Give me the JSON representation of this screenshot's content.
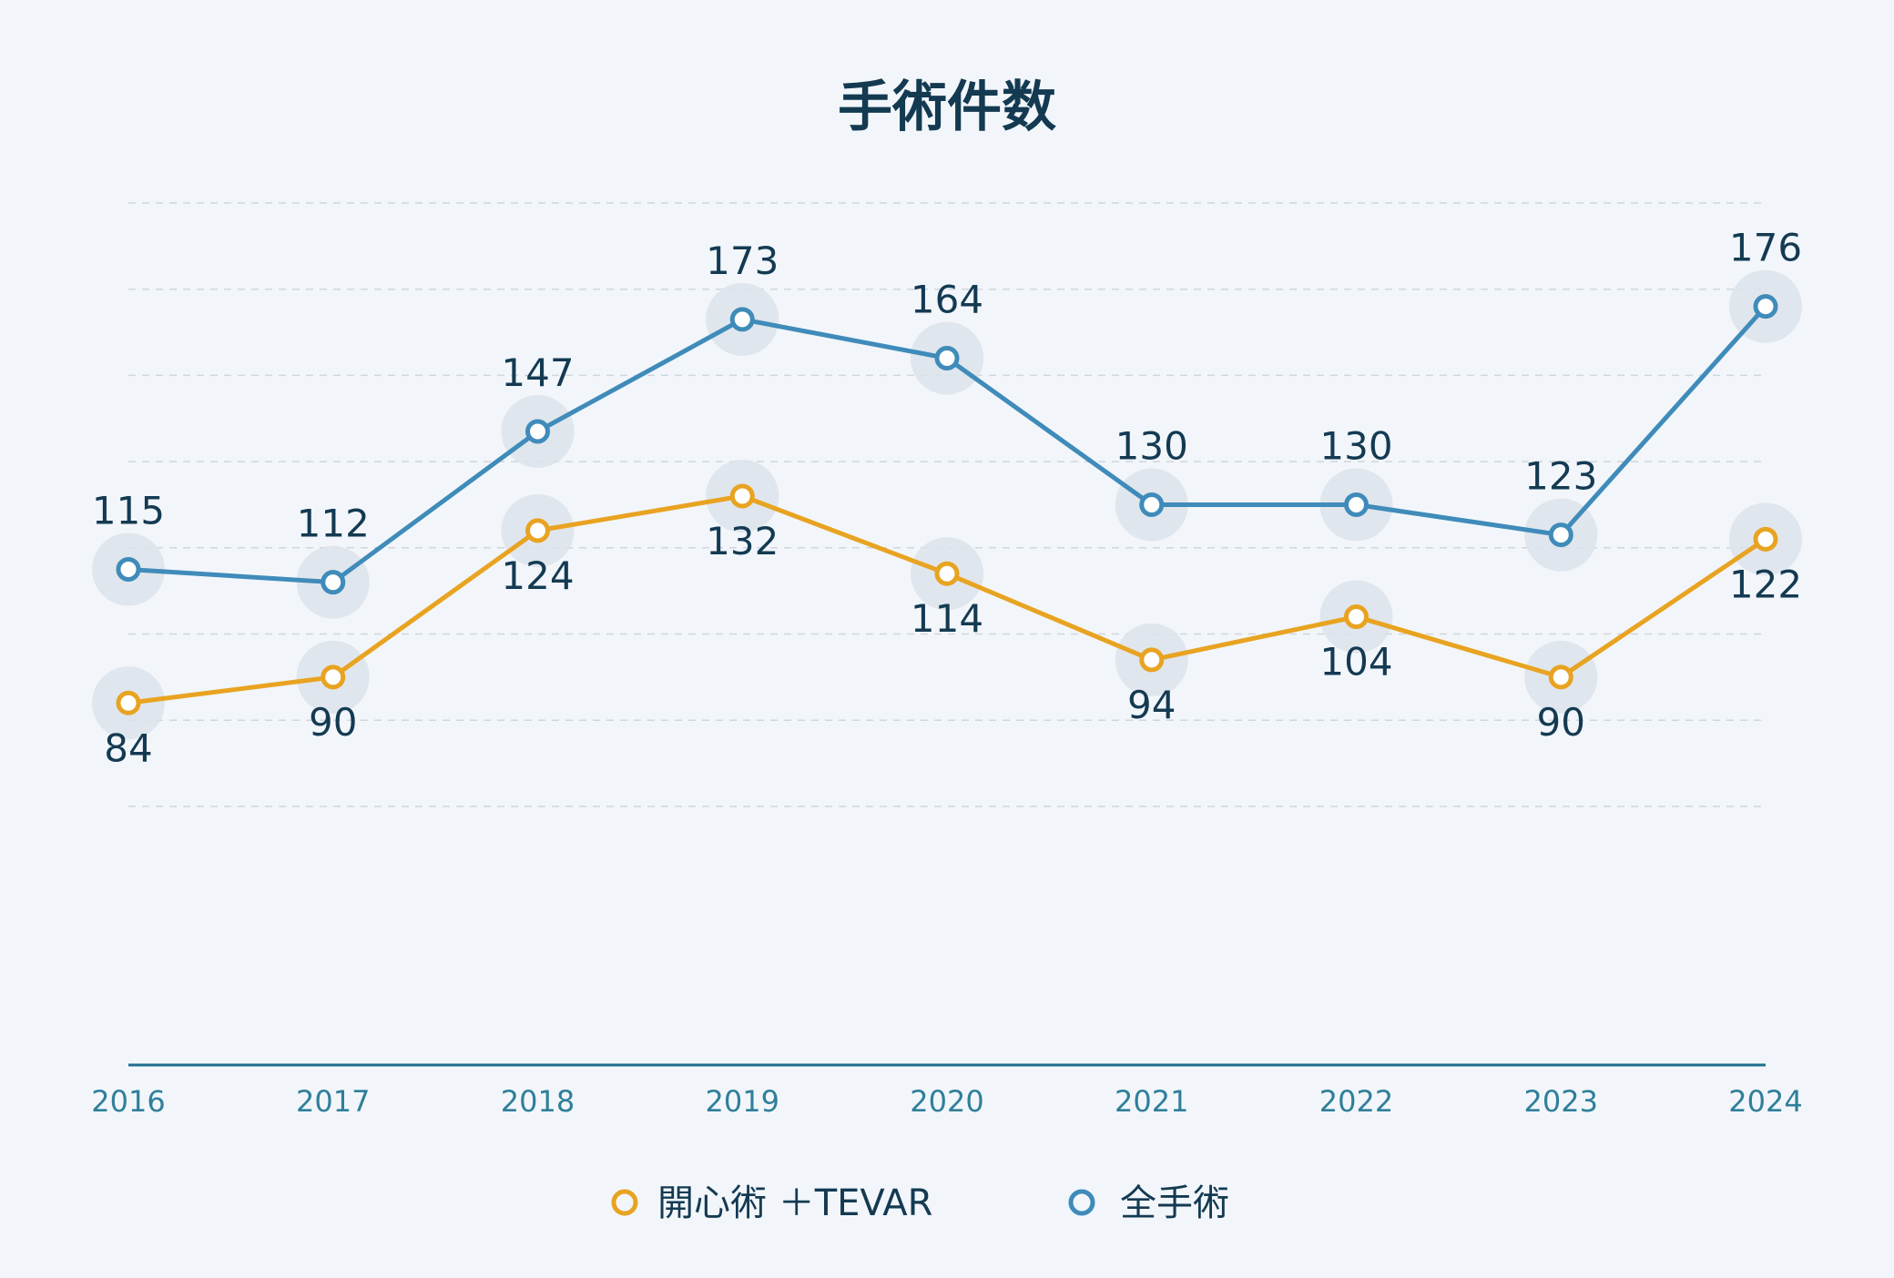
{
  "colors": {
    "background": "#f2f6fa",
    "open_tevar": "#e8a321",
    "all_surgery": "#3f8bba",
    "text": "#143a52",
    "axis": "#2f7f9a",
    "grid": "#cfd6dd",
    "halo": "#dde3ea"
  },
  "chart_data": {
    "type": "line",
    "title": "手術件数",
    "xlabel": "",
    "ylabel": "",
    "categories": [
      "2016",
      "2017",
      "2018",
      "2019",
      "2020",
      "2021",
      "2022",
      "2023",
      "2024"
    ],
    "ylim": [
      0,
      200
    ],
    "grid": true,
    "legend_position": "bottom-center",
    "series": [
      {
        "name": "開心術 ＋TEVAR",
        "color": "#e8a321",
        "values": [
          84,
          90,
          124,
          132,
          114,
          94,
          104,
          90,
          122
        ],
        "label_side": [
          "below",
          "below",
          "below",
          "below",
          "below",
          "below",
          "below",
          "below",
          "below"
        ]
      },
      {
        "name": "全手術",
        "color": "#3f8bba",
        "values": [
          115,
          112,
          147,
          173,
          164,
          130,
          130,
          123,
          176
        ],
        "label_side": [
          "above",
          "above",
          "above",
          "above",
          "above",
          "above",
          "above",
          "above",
          "above"
        ]
      }
    ]
  }
}
